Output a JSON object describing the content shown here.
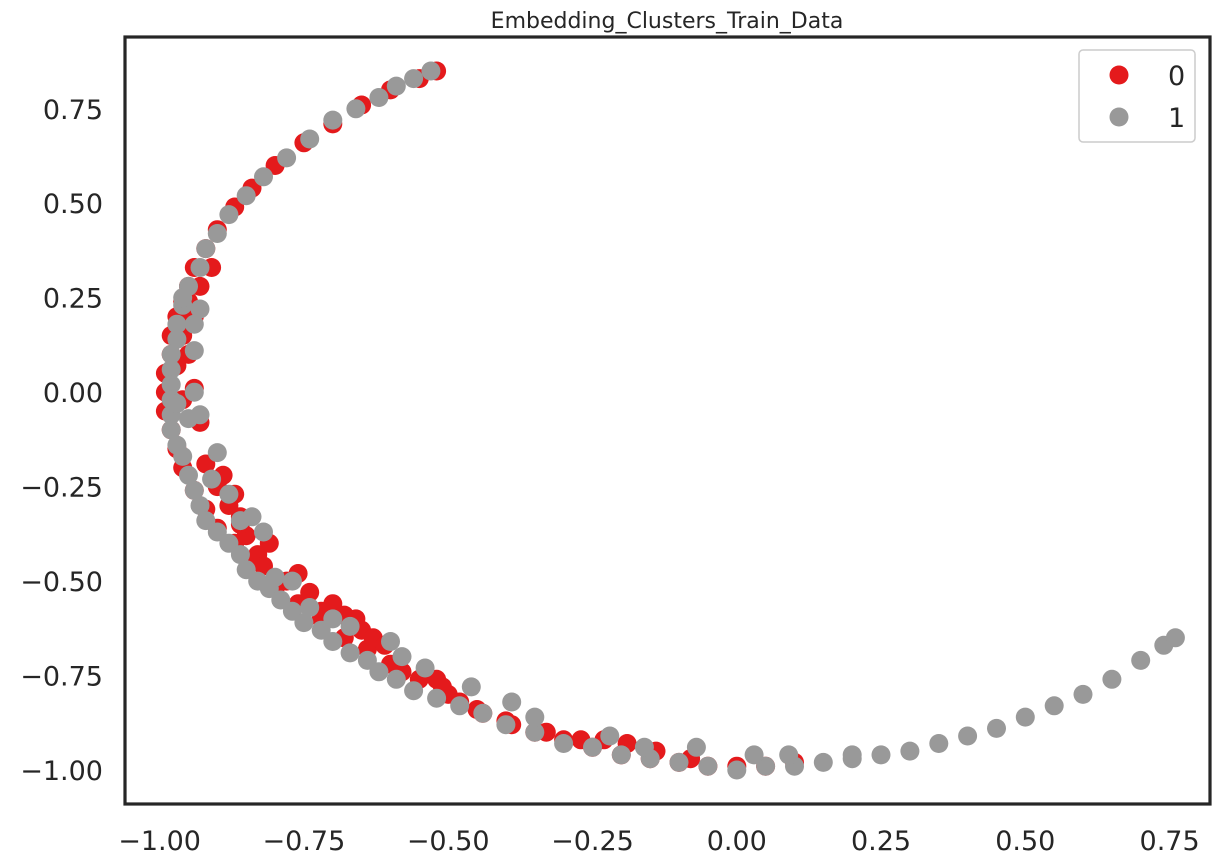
{
  "chart_data": {
    "type": "scatter",
    "title": "Embedding_Clusters_Train_Data",
    "xlabel": "",
    "ylabel": "",
    "xlim": [
      -1.06,
      0.82
    ],
    "ylim": [
      -1.09,
      0.94
    ],
    "x_ticks": [
      -1.0,
      -0.75,
      -0.5,
      -0.25,
      0.0,
      0.25,
      0.5,
      0.75
    ],
    "x_tick_labels": [
      "−1.00",
      "−0.75",
      "−0.50",
      "−0.25",
      "0.00",
      "0.25",
      "0.50",
      "0.75"
    ],
    "y_ticks": [
      0.75,
      0.5,
      0.25,
      0.0,
      -0.25,
      -0.5,
      -0.75,
      -1.0
    ],
    "y_tick_labels": [
      "0.75",
      "0.50",
      "0.25",
      "0.00",
      "−0.25",
      "−0.50",
      "−0.75",
      "−1.00"
    ],
    "grid": false,
    "legend_position": "top-right",
    "series": [
      {
        "name": "0",
        "color": "#e41a1c",
        "points": [
          [
            -0.52,
            0.85
          ],
          [
            -0.55,
            0.83
          ],
          [
            -0.6,
            0.8
          ],
          [
            -0.65,
            0.76
          ],
          [
            -0.7,
            0.71
          ],
          [
            -0.75,
            0.66
          ],
          [
            -0.8,
            0.6
          ],
          [
            -0.84,
            0.54
          ],
          [
            -0.87,
            0.49
          ],
          [
            -0.9,
            0.43
          ],
          [
            -0.92,
            0.38
          ],
          [
            -0.94,
            0.33
          ],
          [
            -0.95,
            0.28
          ],
          [
            -0.96,
            0.24
          ],
          [
            -0.97,
            0.2
          ],
          [
            -0.98,
            0.15
          ],
          [
            -0.98,
            0.1
          ],
          [
            -0.99,
            0.05
          ],
          [
            -0.99,
            0.0
          ],
          [
            -0.99,
            -0.05
          ],
          [
            -0.98,
            -0.1
          ],
          [
            -0.97,
            -0.15
          ],
          [
            -0.96,
            -0.2
          ],
          [
            -0.94,
            -0.26
          ],
          [
            -0.92,
            -0.31
          ],
          [
            -0.9,
            -0.36
          ],
          [
            -0.87,
            -0.4
          ],
          [
            -0.84,
            -0.45
          ],
          [
            -0.8,
            -0.52
          ],
          [
            -0.76,
            -0.56
          ],
          [
            -0.72,
            -0.6
          ],
          [
            -0.68,
            -0.65
          ],
          [
            -0.64,
            -0.68
          ],
          [
            -0.6,
            -0.72
          ],
          [
            -0.55,
            -0.76
          ],
          [
            -0.5,
            -0.8
          ],
          [
            -0.45,
            -0.84
          ],
          [
            -0.4,
            -0.87
          ],
          [
            -0.35,
            -0.9
          ],
          [
            -0.3,
            -0.92
          ],
          [
            -0.25,
            -0.94
          ],
          [
            -0.2,
            -0.96
          ],
          [
            -0.15,
            -0.97
          ],
          [
            -0.1,
            -0.98
          ],
          [
            -0.05,
            -0.99
          ],
          [
            0.0,
            -0.99
          ],
          [
            0.05,
            -0.99
          ],
          [
            0.1,
            -0.98
          ],
          [
            -0.93,
            0.28
          ],
          [
            -0.91,
            0.33
          ],
          [
            -0.95,
            0.1
          ],
          [
            -0.93,
            -0.08
          ],
          [
            -0.92,
            -0.19
          ],
          [
            -0.9,
            -0.25
          ],
          [
            -0.88,
            -0.3
          ],
          [
            -0.86,
            -0.33
          ],
          [
            -0.85,
            -0.38
          ],
          [
            -0.83,
            -0.43
          ],
          [
            -0.82,
            -0.46
          ],
          [
            -0.78,
            -0.5
          ],
          [
            -0.72,
            -0.58
          ],
          [
            -0.7,
            -0.56
          ],
          [
            -0.68,
            -0.59
          ],
          [
            -0.66,
            -0.6
          ],
          [
            -0.65,
            -0.63
          ],
          [
            -0.63,
            -0.65
          ],
          [
            -0.61,
            -0.67
          ],
          [
            -0.58,
            -0.74
          ],
          [
            -0.52,
            -0.76
          ],
          [
            -0.51,
            -0.78
          ],
          [
            -0.48,
            -0.82
          ],
          [
            -0.44,
            -0.85
          ],
          [
            -0.39,
            -0.88
          ],
          [
            -0.33,
            -0.9
          ],
          [
            -0.27,
            -0.92
          ],
          [
            -0.23,
            -0.92
          ],
          [
            -0.19,
            -0.93
          ],
          [
            -0.14,
            -0.95
          ],
          [
            -0.08,
            -0.97
          ],
          [
            -0.94,
            0.01
          ],
          [
            -0.96,
            -0.02
          ],
          [
            -0.97,
            0.07
          ],
          [
            -0.96,
            0.15
          ],
          [
            -0.94,
            0.2
          ],
          [
            -0.95,
            0.24
          ],
          [
            -0.89,
            -0.22
          ],
          [
            -0.87,
            -0.27
          ],
          [
            -0.86,
            -0.35
          ],
          [
            -0.81,
            -0.4
          ],
          [
            -0.76,
            -0.48
          ],
          [
            -0.74,
            -0.53
          ]
        ]
      },
      {
        "name": "1",
        "color": "#999999",
        "points": [
          [
            -0.53,
            0.85
          ],
          [
            -0.56,
            0.83
          ],
          [
            -0.59,
            0.81
          ],
          [
            -0.62,
            0.78
          ],
          [
            -0.66,
            0.75
          ],
          [
            -0.7,
            0.72
          ],
          [
            -0.74,
            0.67
          ],
          [
            -0.78,
            0.62
          ],
          [
            -0.82,
            0.57
          ],
          [
            -0.85,
            0.52
          ],
          [
            -0.88,
            0.47
          ],
          [
            -0.9,
            0.42
          ],
          [
            -0.92,
            0.38
          ],
          [
            -0.93,
            0.33
          ],
          [
            -0.95,
            0.28
          ],
          [
            -0.96,
            0.23
          ],
          [
            -0.97,
            0.18
          ],
          [
            -0.97,
            0.14
          ],
          [
            -0.98,
            0.1
          ],
          [
            -0.98,
            0.06
          ],
          [
            -0.98,
            0.02
          ],
          [
            -0.98,
            -0.02
          ],
          [
            -0.98,
            -0.06
          ],
          [
            -0.98,
            -0.1
          ],
          [
            -0.97,
            -0.14
          ],
          [
            -0.96,
            -0.17
          ],
          [
            -0.95,
            -0.22
          ],
          [
            -0.94,
            -0.26
          ],
          [
            -0.93,
            -0.3
          ],
          [
            -0.92,
            -0.34
          ],
          [
            -0.9,
            -0.37
          ],
          [
            -0.88,
            -0.4
          ],
          [
            -0.86,
            -0.43
          ],
          [
            -0.85,
            -0.47
          ],
          [
            -0.83,
            -0.5
          ],
          [
            -0.81,
            -0.52
          ],
          [
            -0.79,
            -0.55
          ],
          [
            -0.77,
            -0.58
          ],
          [
            -0.75,
            -0.61
          ],
          [
            -0.72,
            -0.63
          ],
          [
            -0.7,
            -0.66
          ],
          [
            -0.67,
            -0.69
          ],
          [
            -0.64,
            -0.71
          ],
          [
            -0.62,
            -0.74
          ],
          [
            -0.59,
            -0.76
          ],
          [
            -0.56,
            -0.79
          ],
          [
            -0.52,
            -0.81
          ],
          [
            -0.48,
            -0.83
          ],
          [
            -0.44,
            -0.85
          ],
          [
            -0.4,
            -0.88
          ],
          [
            -0.35,
            -0.9
          ],
          [
            -0.3,
            -0.93
          ],
          [
            -0.25,
            -0.94
          ],
          [
            -0.2,
            -0.96
          ],
          [
            -0.15,
            -0.97
          ],
          [
            -0.1,
            -0.98
          ],
          [
            -0.05,
            -0.99
          ],
          [
            0.0,
            -1.0
          ],
          [
            0.05,
            -0.99
          ],
          [
            0.1,
            -0.99
          ],
          [
            0.15,
            -0.98
          ],
          [
            0.2,
            -0.97
          ],
          [
            0.25,
            -0.96
          ],
          [
            0.3,
            -0.95
          ],
          [
            0.35,
            -0.93
          ],
          [
            0.4,
            -0.91
          ],
          [
            0.45,
            -0.89
          ],
          [
            0.5,
            -0.86
          ],
          [
            0.55,
            -0.83
          ],
          [
            0.6,
            -0.8
          ],
          [
            0.65,
            -0.76
          ],
          [
            0.7,
            -0.71
          ],
          [
            0.74,
            -0.67
          ],
          [
            0.76,
            -0.65
          ],
          [
            -0.94,
            0.0
          ],
          [
            -0.93,
            -0.06
          ],
          [
            -0.94,
            0.18
          ],
          [
            -0.94,
            0.11
          ],
          [
            -0.88,
            -0.27
          ],
          [
            -0.86,
            -0.34
          ],
          [
            -0.8,
            -0.49
          ],
          [
            -0.77,
            -0.5
          ],
          [
            -0.7,
            -0.6
          ],
          [
            -0.67,
            -0.62
          ],
          [
            -0.6,
            -0.66
          ],
          [
            -0.58,
            -0.7
          ],
          [
            -0.54,
            -0.73
          ],
          [
            -0.46,
            -0.78
          ],
          [
            -0.39,
            -0.82
          ],
          [
            -0.35,
            -0.86
          ],
          [
            -0.22,
            -0.91
          ],
          [
            -0.16,
            -0.94
          ],
          [
            -0.07,
            -0.94
          ],
          [
            0.03,
            -0.96
          ],
          [
            0.09,
            -0.96
          ],
          [
            0.2,
            -0.96
          ],
          [
            -0.84,
            -0.33
          ],
          [
            -0.82,
            -0.37
          ],
          [
            -0.9,
            -0.16
          ],
          [
            -0.91,
            -0.23
          ],
          [
            -0.95,
            -0.07
          ],
          [
            -0.96,
            0.25
          ],
          [
            -0.93,
            0.22
          ],
          [
            -0.97,
            -0.03
          ],
          [
            -0.74,
            -0.57
          ]
        ]
      }
    ]
  }
}
